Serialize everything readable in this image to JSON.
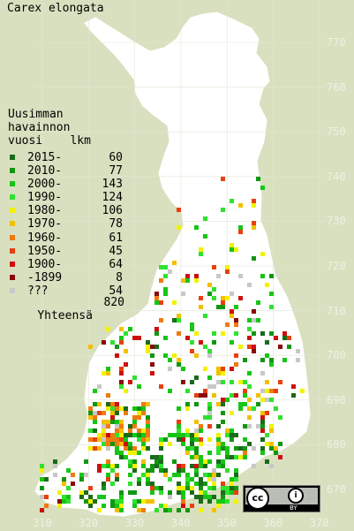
{
  "title": "Carex elongata",
  "legend": {
    "heading": [
      "Uusimman",
      "havainnon",
      "vuosi    lkm"
    ],
    "rows": [
      {
        "label": "2015-",
        "count": "60",
        "color": "#1a6b1a"
      },
      {
        "label": "2010-",
        "count": "77",
        "color": "#129612"
      },
      {
        "label": "2000-",
        "count": "143",
        "color": "#16c616"
      },
      {
        "label": "1990-",
        "count": "124",
        "color": "#2fe22f"
      },
      {
        "label": "1980-",
        "count": "106",
        "color": "#f2f200"
      },
      {
        "label": "1970-",
        "count": "78",
        "color": "#f2c000"
      },
      {
        "label": "1960-",
        "count": "61",
        "color": "#f07a10"
      },
      {
        "label": "1950-",
        "count": "45",
        "color": "#e84010"
      },
      {
        "label": "1900-",
        "count": "64",
        "color": "#cc1010"
      },
      {
        "label": "-1899",
        "count": "8",
        "color": "#8a0a0a"
      },
      {
        "label": "???",
        "count": "54",
        "color": "#c8c8c8"
      }
    ],
    "total_label": "Yhteensä",
    "total_count": "820"
  },
  "y_axis_labels": [
    "770",
    "760",
    "750",
    "740",
    "730",
    "720",
    "710",
    "700",
    "690",
    "680",
    "670"
  ],
  "x_axis_labels": [
    "310",
    "320",
    "330",
    "340",
    "350",
    "360",
    "370"
  ],
  "license_badge": {
    "cc": "cc",
    "attribution": "i",
    "text": "BY"
  },
  "colors": {
    "background": "#d9e0bf",
    "land": "#ffffff",
    "grid": "#e4e8d8"
  }
}
